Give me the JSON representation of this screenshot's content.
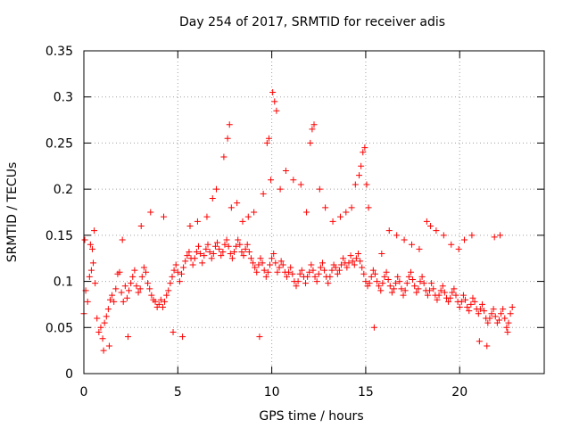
{
  "chart_data": {
    "type": "scatter",
    "title": "Day 254 of 2017, SRMTID for receiver adis",
    "xlabel": "GPS time / hours",
    "ylabel": "SRMTID / TECUs",
    "xlim": [
      0,
      24.5
    ],
    "ylim": [
      0,
      0.35
    ],
    "xticks": [
      0,
      5,
      10,
      15,
      20
    ],
    "xtick_labels": [
      "0",
      "5",
      "10",
      "15",
      "20"
    ],
    "yticks": [
      0,
      0.05,
      0.1,
      0.15,
      0.2,
      0.25,
      0.3,
      0.35
    ],
    "ytick_labels": [
      "0",
      "0.05",
      "0.1",
      "0.15",
      "0.2",
      "0.25",
      "0.3",
      "0.35"
    ],
    "grid": true,
    "marker": "+",
    "color": "#ff0000",
    "series": [
      {
        "name": "SRMTID",
        "x": [
          0.0,
          0.1,
          0.2,
          0.3,
          0.4,
          0.5,
          0.6,
          0.7,
          0.8,
          0.9,
          1.0,
          1.1,
          1.2,
          1.3,
          1.4,
          1.5,
          1.6,
          1.7,
          1.8,
          1.9,
          2.0,
          2.1,
          2.2,
          2.3,
          2.4,
          2.5,
          2.6,
          2.7,
          2.8,
          2.9,
          3.0,
          3.1,
          3.2,
          3.3,
          3.4,
          3.5,
          3.6,
          3.7,
          3.8,
          3.9,
          4.0,
          4.1,
          4.2,
          4.3,
          4.4,
          4.5,
          4.6,
          4.7,
          4.8,
          4.9,
          5.0,
          5.1,
          5.2,
          5.3,
          5.4,
          5.5,
          5.6,
          5.7,
          5.8,
          5.9,
          6.0,
          6.1,
          6.2,
          6.3,
          6.4,
          6.5,
          6.6,
          6.7,
          6.8,
          6.9,
          7.0,
          7.1,
          7.2,
          7.3,
          7.4,
          7.5,
          7.6,
          7.7,
          7.8,
          7.9,
          8.0,
          8.1,
          8.2,
          8.3,
          8.4,
          8.5,
          8.6,
          8.7,
          8.8,
          8.9,
          9.0,
          9.1,
          9.2,
          9.3,
          9.4,
          9.5,
          9.6,
          9.7,
          9.8,
          9.9,
          10.0,
          10.1,
          10.2,
          10.3,
          10.4,
          10.5,
          10.6,
          10.7,
          10.8,
          10.9,
          11.0,
          11.1,
          11.2,
          11.3,
          11.4,
          11.5,
          11.6,
          11.7,
          11.8,
          11.9,
          12.0,
          12.1,
          12.2,
          12.3,
          12.4,
          12.5,
          12.6,
          12.7,
          12.8,
          12.9,
          13.0,
          13.1,
          13.2,
          13.3,
          13.4,
          13.5,
          13.6,
          13.7,
          13.8,
          13.9,
          14.0,
          14.1,
          14.2,
          14.3,
          14.4,
          14.5,
          14.6,
          14.7,
          14.8,
          14.9,
          15.0,
          15.1,
          15.2,
          15.3,
          15.4,
          15.5,
          15.6,
          15.7,
          15.8,
          15.9,
          16.0,
          16.1,
          16.2,
          16.3,
          16.4,
          16.5,
          16.6,
          16.7,
          16.8,
          16.9,
          17.0,
          17.1,
          17.2,
          17.3,
          17.4,
          17.5,
          17.6,
          17.7,
          17.8,
          17.9,
          18.0,
          18.1,
          18.2,
          18.3,
          18.4,
          18.5,
          18.6,
          18.7,
          18.8,
          18.9,
          19.0,
          19.1,
          19.2,
          19.3,
          19.4,
          19.5,
          19.6,
          19.7,
          19.8,
          19.9,
          20.0,
          20.1,
          20.2,
          20.3,
          20.4,
          20.5,
          20.6,
          20.7,
          20.8,
          20.9,
          21.0,
          21.1,
          21.2,
          21.3,
          21.4,
          21.5,
          21.6,
          21.7,
          21.8,
          21.9,
          22.0,
          22.1,
          22.2,
          22.3,
          22.4,
          22.5,
          22.6,
          22.7,
          22.8,
          0.05,
          0.35,
          0.45,
          0.55,
          1.05,
          1.35,
          2.05,
          2.35,
          3.05,
          3.55,
          4.25,
          4.75,
          5.25,
          5.65,
          6.05,
          6.55,
          6.85,
          7.05,
          7.45,
          7.65,
          7.75,
          7.85,
          8.15,
          8.45,
          8.75,
          9.05,
          9.35,
          9.55,
          9.75,
          9.85,
          9.95,
          10.05,
          10.15,
          10.25,
          10.45,
          10.75,
          11.15,
          11.55,
          11.85,
          12.05,
          12.15,
          12.25,
          12.55,
          12.85,
          13.25,
          13.65,
          13.95,
          14.25,
          14.45,
          14.65,
          14.75,
          14.85,
          14.95,
          15.05,
          15.15,
          15.45,
          15.85,
          16.25,
          16.65,
          17.05,
          17.45,
          17.85,
          18.25,
          18.45,
          18.75,
          19.15,
          19.55,
          19.95,
          20.25,
          20.65,
          21.05,
          21.45,
          21.85,
          22.15,
          22.55
        ],
        "y": [
          0.065,
          0.09,
          0.078,
          0.105,
          0.112,
          0.12,
          0.098,
          0.06,
          0.045,
          0.05,
          0.038,
          0.055,
          0.062,
          0.07,
          0.08,
          0.085,
          0.078,
          0.092,
          0.108,
          0.11,
          0.088,
          0.078,
          0.095,
          0.082,
          0.09,
          0.098,
          0.105,
          0.112,
          0.095,
          0.088,
          0.092,
          0.105,
          0.115,
          0.11,
          0.098,
          0.092,
          0.085,
          0.08,
          0.078,
          0.072,
          0.075,
          0.08,
          0.072,
          0.078,
          0.085,
          0.09,
          0.098,
          0.105,
          0.112,
          0.118,
          0.11,
          0.1,
          0.108,
          0.115,
          0.122,
          0.128,
          0.132,
          0.125,
          0.118,
          0.125,
          0.132,
          0.138,
          0.13,
          0.12,
          0.128,
          0.135,
          0.14,
          0.132,
          0.125,
          0.13,
          0.138,
          0.142,
          0.135,
          0.128,
          0.132,
          0.14,
          0.145,
          0.138,
          0.13,
          0.125,
          0.132,
          0.138,
          0.145,
          0.14,
          0.132,
          0.128,
          0.135,
          0.14,
          0.132,
          0.125,
          0.12,
          0.115,
          0.11,
          0.118,
          0.125,
          0.12,
          0.112,
          0.105,
          0.11,
          0.118,
          0.125,
          0.13,
          0.12,
          0.11,
          0.115,
          0.122,
          0.118,
          0.11,
          0.105,
          0.11,
          0.115,
          0.108,
          0.1,
          0.095,
          0.1,
          0.108,
          0.112,
          0.105,
          0.098,
          0.105,
          0.11,
          0.118,
          0.112,
          0.105,
          0.1,
          0.108,
          0.115,
          0.12,
          0.112,
          0.105,
          0.098,
          0.105,
          0.112,
          0.118,
          0.115,
          0.108,
          0.112,
          0.118,
          0.125,
          0.12,
          0.115,
          0.12,
          0.128,
          0.122,
          0.118,
          0.125,
          0.13,
          0.122,
          0.115,
          0.108,
          0.1,
          0.095,
          0.098,
          0.105,
          0.112,
          0.108,
          0.1,
          0.095,
          0.09,
          0.098,
          0.105,
          0.11,
          0.102,
          0.095,
          0.088,
          0.092,
          0.098,
          0.105,
          0.1,
          0.092,
          0.085,
          0.09,
          0.098,
          0.105,
          0.11,
          0.102,
          0.095,
          0.088,
          0.092,
          0.1,
          0.105,
          0.098,
          0.09,
          0.085,
          0.09,
          0.098,
          0.092,
          0.085,
          0.08,
          0.085,
          0.09,
          0.095,
          0.088,
          0.082,
          0.078,
          0.082,
          0.088,
          0.092,
          0.085,
          0.078,
          0.072,
          0.078,
          0.085,
          0.08,
          0.072,
          0.068,
          0.075,
          0.082,
          0.078,
          0.07,
          0.065,
          0.07,
          0.075,
          0.068,
          0.06,
          0.055,
          0.06,
          0.065,
          0.07,
          0.062,
          0.055,
          0.058,
          0.065,
          0.07,
          0.06,
          0.05,
          0.055,
          0.065,
          0.072,
          0.145,
          0.14,
          0.135,
          0.155,
          0.025,
          0.03,
          0.145,
          0.04,
          0.16,
          0.175,
          0.17,
          0.045,
          0.04,
          0.16,
          0.165,
          0.17,
          0.19,
          0.2,
          0.235,
          0.255,
          0.27,
          0.18,
          0.185,
          0.165,
          0.17,
          0.175,
          0.04,
          0.195,
          0.25,
          0.255,
          0.21,
          0.305,
          0.295,
          0.285,
          0.2,
          0.22,
          0.21,
          0.205,
          0.175,
          0.25,
          0.265,
          0.27,
          0.2,
          0.18,
          0.165,
          0.17,
          0.175,
          0.18,
          0.205,
          0.215,
          0.225,
          0.24,
          0.245,
          0.205,
          0.18,
          0.05,
          0.13,
          0.155,
          0.15,
          0.145,
          0.14,
          0.135,
          0.165,
          0.16,
          0.155,
          0.15,
          0.14,
          0.135,
          0.145,
          0.15,
          0.035,
          0.03,
          0.148,
          0.15,
          0.045
        ]
      }
    ]
  }
}
